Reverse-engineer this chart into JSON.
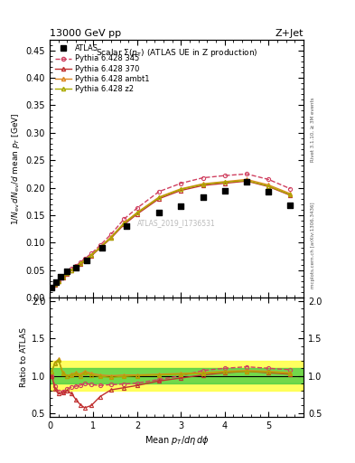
{
  "title_left": "13000 GeV pp",
  "title_right": "Z+Jet",
  "plot_title": "Scalar $\\Sigma(p_\\mathrm{T})$ (ATLAS UE in Z production)",
  "ylabel_main": "$1/N_\\mathrm{ev}\\, dN_\\mathrm{ev}/d$ mean $p_T$ [GeV]",
  "ylabel_ratio": "Ratio to ATLAS",
  "xlabel": "Mean $p_T/d\\eta\\, d\\phi$",
  "watermark": "ATLAS_2019_I1736531",
  "right_label1": "Rivet 3.1.10, ≥ 3M events",
  "right_label2": "mcplots.cern.ch [arXiv:1306.3436]",
  "atlas_x": [
    0.05,
    0.15,
    0.25,
    0.4,
    0.6,
    0.85,
    1.2,
    1.75,
    2.5,
    3.0,
    3.5,
    4.0,
    4.5,
    5.0,
    5.5
  ],
  "atlas_y": [
    0.018,
    0.028,
    0.038,
    0.048,
    0.055,
    0.068,
    0.09,
    0.13,
    0.155,
    0.167,
    0.182,
    0.195,
    0.21,
    0.192,
    0.168
  ],
  "py345_x": [
    0.05,
    0.12,
    0.2,
    0.3,
    0.4,
    0.5,
    0.6,
    0.7,
    0.8,
    0.95,
    1.15,
    1.4,
    1.7,
    2.0,
    2.5,
    3.0,
    3.5,
    4.0,
    4.5,
    5.0,
    5.5
  ],
  "py345_y": [
    0.018,
    0.024,
    0.03,
    0.038,
    0.045,
    0.052,
    0.058,
    0.064,
    0.071,
    0.08,
    0.095,
    0.115,
    0.143,
    0.163,
    0.193,
    0.208,
    0.218,
    0.222,
    0.225,
    0.215,
    0.198
  ],
  "py370_x": [
    0.05,
    0.12,
    0.2,
    0.3,
    0.4,
    0.5,
    0.6,
    0.7,
    0.8,
    0.95,
    1.15,
    1.4,
    1.7,
    2.0,
    2.5,
    3.0,
    3.5,
    4.0,
    4.5,
    5.0,
    5.5
  ],
  "py370_y": [
    0.018,
    0.023,
    0.029,
    0.037,
    0.043,
    0.049,
    0.055,
    0.061,
    0.067,
    0.076,
    0.09,
    0.108,
    0.133,
    0.152,
    0.18,
    0.195,
    0.204,
    0.208,
    0.212,
    0.202,
    0.186
  ],
  "pyambt1_x": [
    0.05,
    0.12,
    0.2,
    0.3,
    0.4,
    0.5,
    0.6,
    0.7,
    0.8,
    0.95,
    1.15,
    1.4,
    1.7,
    2.0,
    2.5,
    3.0,
    3.5,
    4.0,
    4.5,
    5.0,
    5.5
  ],
  "pyambt1_y": [
    0.019,
    0.024,
    0.03,
    0.038,
    0.044,
    0.05,
    0.056,
    0.062,
    0.068,
    0.077,
    0.092,
    0.11,
    0.136,
    0.155,
    0.183,
    0.198,
    0.207,
    0.211,
    0.215,
    0.205,
    0.189
  ],
  "pyz2_x": [
    0.05,
    0.12,
    0.2,
    0.3,
    0.4,
    0.5,
    0.6,
    0.7,
    0.8,
    0.95,
    1.15,
    1.4,
    1.7,
    2.0,
    2.5,
    3.0,
    3.5,
    4.0,
    4.5,
    5.0,
    5.5
  ],
  "pyz2_y": [
    0.019,
    0.024,
    0.03,
    0.038,
    0.044,
    0.05,
    0.056,
    0.062,
    0.068,
    0.077,
    0.091,
    0.109,
    0.135,
    0.154,
    0.182,
    0.197,
    0.206,
    0.21,
    0.213,
    0.203,
    0.187
  ],
  "ratio_py345_x": [
    0.05,
    0.12,
    0.2,
    0.3,
    0.4,
    0.5,
    0.6,
    0.7,
    0.8,
    0.95,
    1.15,
    1.4,
    1.7,
    2.0,
    2.5,
    3.0,
    3.5,
    4.0,
    4.5,
    5.0,
    5.5
  ],
  "ratio_py345_y": [
    1.0,
    0.86,
    0.79,
    0.79,
    0.82,
    0.85,
    0.86,
    0.87,
    0.9,
    0.88,
    0.87,
    0.88,
    0.89,
    0.9,
    0.95,
    1.0,
    1.07,
    1.1,
    1.12,
    1.1,
    1.08
  ],
  "ratio_py370_x": [
    0.05,
    0.12,
    0.2,
    0.3,
    0.4,
    0.5,
    0.6,
    0.7,
    0.8,
    0.95,
    1.15,
    1.4,
    1.7,
    2.0,
    2.5,
    3.0,
    3.5,
    4.0,
    4.5,
    5.0,
    5.5
  ],
  "ratio_py370_y": [
    1.0,
    0.82,
    0.76,
    0.77,
    0.8,
    0.76,
    0.68,
    0.61,
    0.57,
    0.6,
    0.72,
    0.81,
    0.84,
    0.87,
    0.93,
    0.97,
    1.01,
    1.04,
    1.06,
    1.04,
    1.02
  ],
  "ratio_pyambt1_x": [
    0.05,
    0.12,
    0.2,
    0.3,
    0.4,
    0.5,
    0.6,
    0.7,
    0.8,
    0.95,
    1.15,
    1.4,
    1.7,
    2.0,
    2.5,
    3.0,
    3.5,
    4.0,
    4.5,
    5.0,
    5.5
  ],
  "ratio_pyambt1_y": [
    1.06,
    1.18,
    1.22,
    1.04,
    1.0,
    1.02,
    1.04,
    1.02,
    1.06,
    1.03,
    1.01,
    1.0,
    1.01,
    1.01,
    1.02,
    1.03,
    1.04,
    1.06,
    1.07,
    1.06,
    1.04
  ],
  "ratio_pyz2_x": [
    0.05,
    0.12,
    0.2,
    0.3,
    0.4,
    0.5,
    0.6,
    0.7,
    0.8,
    0.95,
    1.15,
    1.4,
    1.7,
    2.0,
    2.5,
    3.0,
    3.5,
    4.0,
    4.5,
    5.0,
    5.5
  ],
  "ratio_pyz2_y": [
    1.06,
    1.17,
    1.21,
    1.03,
    0.99,
    1.01,
    1.03,
    1.0,
    1.04,
    1.01,
    0.99,
    0.98,
    0.99,
    1.0,
    1.01,
    1.02,
    1.03,
    1.05,
    1.06,
    1.05,
    1.03
  ],
  "band_yellow_lo": 0.8,
  "band_yellow_hi": 1.2,
  "band_green_lo": 0.9,
  "band_green_hi": 1.1,
  "color_atlas": "#000000",
  "color_py345": "#d04060",
  "color_py370": "#c03030",
  "color_pyambt1": "#dd8822",
  "color_pyz2": "#aaaa00",
  "color_band_yellow": "#ffff44",
  "color_band_green": "#44cc44",
  "ylim_main": [
    0.0,
    0.47
  ],
  "ylim_ratio": [
    0.45,
    2.05
  ],
  "xlim": [
    0.0,
    5.8
  ],
  "yticks_main": [
    0.0,
    0.05,
    0.1,
    0.15,
    0.2,
    0.25,
    0.3,
    0.35,
    0.4,
    0.45
  ],
  "yticks_ratio": [
    0.5,
    1.0,
    1.5,
    2.0
  ],
  "xticks": [
    0,
    1,
    2,
    3,
    4,
    5
  ]
}
